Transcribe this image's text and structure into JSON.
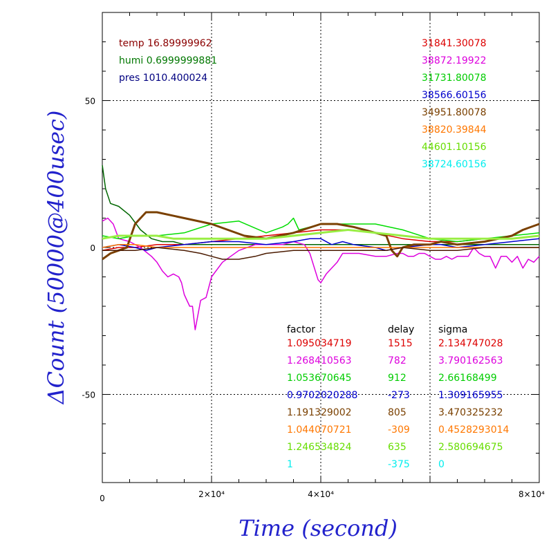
{
  "chart_data": {
    "type": "line",
    "xlabel": "Time (second)",
    "ylabel": "ΔCount (50000@400usec)",
    "xlim": [
      0,
      80000
    ],
    "ylim": [
      -80,
      80
    ],
    "x_tick_labels": [
      "0",
      "2×10⁴",
      "4×10⁴",
      "8×10⁴"
    ],
    "x_tick_values": [
      0,
      20000,
      40000,
      80000
    ],
    "y_tick_labels": [
      "50",
      "0",
      "-50"
    ],
    "y_tick_values": [
      50,
      0,
      -50
    ],
    "grid": "dotted at major ticks",
    "env": [
      {
        "text": "temp 16.89999962",
        "color": "#8b0000"
      },
      {
        "text": "humi 0.6999999881",
        "color": "#007700"
      },
      {
        "text": "pres 1010.400024",
        "color": "#000080"
      }
    ],
    "means": [
      {
        "text": "31841.30078",
        "color": "#dd0000"
      },
      {
        "text": "38872.19922",
        "color": "#dd00dd"
      },
      {
        "text": "31731.80078",
        "color": "#00cc00"
      },
      {
        "text": "38566.60156",
        "color": "#0000cc"
      },
      {
        "text": "34951.80078",
        "color": "#7a4000"
      },
      {
        "text": "38820.39844",
        "color": "#ff7700"
      },
      {
        "text": "44601.10156",
        "color": "#66dd00"
      },
      {
        "text": "38724.60156",
        "color": "#00eeee"
      }
    ],
    "table_headers": [
      "factor",
      "delay",
      "sigma"
    ],
    "table_rows": [
      {
        "factor": "1.095034719",
        "delay": "1515",
        "sigma": "2.134747028",
        "color": "#dd0000"
      },
      {
        "factor": "1.268410563",
        "delay": "782",
        "sigma": "3.790162563",
        "color": "#dd00dd"
      },
      {
        "factor": "1.053670645",
        "delay": "912",
        "sigma": "2.66168499",
        "color": "#00cc00"
      },
      {
        "factor": "0.9702020288",
        "delay": "-273",
        "sigma": "1.309165955",
        "color": "#0000cc"
      },
      {
        "factor": "1.191329002",
        "delay": "805",
        "sigma": "3.470325232",
        "color": "#7a4000"
      },
      {
        "factor": "1.044070721",
        "delay": "-309",
        "sigma": "0.4528293014",
        "color": "#ff7700"
      },
      {
        "factor": "1.246534824",
        "delay": "635",
        "sigma": "2.580694675",
        "color": "#66dd00"
      },
      {
        "factor": "1",
        "delay": "-375",
        "sigma": "0",
        "color": "#00eeee"
      }
    ],
    "series": [
      {
        "color": "#006600",
        "x": [
          0,
          600,
          1500,
          3000,
          5000,
          7000,
          9000,
          11000,
          13000,
          15000,
          20000,
          40000,
          60000,
          80000
        ],
        "y": [
          28,
          20,
          15,
          14,
          11,
          6,
          3,
          2,
          2,
          1,
          1,
          1,
          1,
          1
        ]
      },
      {
        "color": "#dd0000",
        "x": [
          0,
          3000,
          6000,
          10000,
          15000,
          20000,
          25000,
          30000,
          35000,
          40000,
          45000,
          50000,
          55000,
          60000,
          65000,
          70000,
          75000,
          80000
        ],
        "y": [
          -1,
          0,
          0,
          1,
          1,
          2,
          3,
          4,
          5,
          6,
          6,
          5,
          3,
          2,
          2,
          3,
          3,
          4
        ]
      },
      {
        "color": "#dd00dd",
        "x": [
          0,
          1000,
          2000,
          3000,
          5000,
          7000,
          9000,
          10000,
          11000,
          12000,
          13000,
          14000,
          14500,
          15000,
          15500,
          16000,
          16500,
          17000,
          18000,
          19000,
          20000,
          22000,
          25000,
          28000,
          30000,
          33000,
          35000,
          37000,
          38000,
          39000,
          39500,
          40000,
          41000,
          42000,
          43000,
          44000,
          45000,
          47000,
          50000,
          52000,
          54000,
          55000,
          56000,
          57000,
          58000,
          59000,
          60000,
          61000,
          62000,
          63000,
          64000,
          65000,
          66000,
          67000,
          68000,
          69000,
          70000,
          71000,
          72000,
          73000,
          74000,
          75000,
          76000,
          77000,
          78000,
          79000,
          80000
        ],
        "y": [
          9,
          10,
          8,
          3,
          2,
          0,
          -3,
          -5,
          -8,
          -10,
          -9,
          -10,
          -12,
          -16,
          -18,
          -20,
          -20,
          -28,
          -18,
          -17,
          -10,
          -5,
          -1,
          1,
          1,
          1,
          2,
          1,
          -2,
          -8,
          -11,
          -12,
          -9,
          -7,
          -5,
          -2,
          -2,
          -2,
          -3,
          -3,
          -2,
          -2,
          -3,
          -3,
          -2,
          -2,
          -3,
          -4,
          -4,
          -3,
          -4,
          -3,
          -3,
          -3,
          0,
          -2,
          -3,
          -3,
          -7,
          -3,
          -3,
          -5,
          -3,
          -7,
          -4,
          -5,
          -3
        ]
      },
      {
        "color": "#00dd00",
        "x": [
          0,
          3000,
          6000,
          10000,
          15000,
          20000,
          25000,
          30000,
          33000,
          34000,
          35000,
          36000,
          38000,
          40000,
          45000,
          50000,
          55000,
          60000,
          65000,
          70000,
          75000,
          80000
        ],
        "y": [
          4,
          3,
          4,
          4,
          5,
          8,
          9,
          5,
          7,
          8,
          10,
          6,
          7,
          8,
          8,
          8,
          6,
          3,
          2,
          3,
          4,
          5
        ]
      },
      {
        "color": "#0000cc",
        "x": [
          0,
          3000,
          6000,
          8000,
          10000,
          15000,
          20000,
          25000,
          30000,
          35000,
          38000,
          40000,
          42000,
          44000,
          46000,
          50000,
          52000,
          55000,
          60000,
          62000,
          65000,
          70000,
          75000,
          80000
        ],
        "y": [
          0,
          1,
          0,
          -1,
          0,
          1,
          2,
          2,
          1,
          2,
          3,
          3,
          1,
          2,
          1,
          0,
          -1,
          0,
          1,
          1,
          0,
          1,
          2,
          3
        ]
      },
      {
        "color": "#7a4000",
        "x": [
          0,
          1500,
          3000,
          4500,
          6000,
          8000,
          10000,
          15000,
          20000,
          23000,
          26000,
          30000,
          35000,
          40000,
          43000,
          46000,
          48000,
          50000,
          52000,
          53000,
          54000,
          55000,
          57000,
          60000,
          62000,
          65000,
          70000,
          75000,
          77000,
          80000
        ],
        "y": [
          -4,
          -2,
          -1,
          0,
          8,
          12,
          12,
          10,
          8,
          6,
          4,
          3,
          5,
          8,
          8,
          7,
          6,
          5,
          4,
          -1,
          -3,
          0,
          1,
          1,
          2,
          1,
          2,
          4,
          6,
          8
        ]
      },
      {
        "color": "#ff7700",
        "x": [
          0,
          3000,
          6000,
          10000,
          15000,
          20000,
          25000,
          30000,
          35000,
          40000,
          45000,
          50000,
          55000,
          60000,
          65000,
          70000,
          75000,
          80000
        ],
        "y": [
          0,
          1,
          1,
          0,
          0,
          0,
          0,
          0,
          0,
          0,
          0,
          0,
          0,
          0,
          0,
          0,
          0,
          0
        ]
      },
      {
        "color": "#99ee44",
        "x": [
          0,
          3000,
          6000,
          10000,
          13000,
          16000,
          20000,
          25000,
          30000,
          35000,
          40000,
          45000,
          50000,
          55000,
          60000,
          65000,
          70000,
          75000,
          80000
        ],
        "y": [
          3,
          4,
          4,
          4,
          3,
          3,
          3,
          3,
          3,
          4,
          5,
          6,
          5,
          4,
          3,
          3,
          3,
          3,
          4
        ]
      },
      {
        "color": "#4a1a00",
        "x": [
          0,
          3000,
          6000,
          10000,
          15000,
          18000,
          20000,
          22000,
          25000,
          28000,
          30000,
          35000,
          40000,
          45000,
          50000,
          52000,
          55000,
          60000,
          65000,
          70000,
          75000,
          80000
        ],
        "y": [
          -1,
          -1,
          -1,
          0,
          -1,
          -2,
          -3,
          -4,
          -4,
          -3,
          -2,
          -1,
          -1,
          -1,
          -1,
          -1,
          0,
          -1,
          -1,
          0,
          0,
          0
        ]
      }
    ]
  }
}
